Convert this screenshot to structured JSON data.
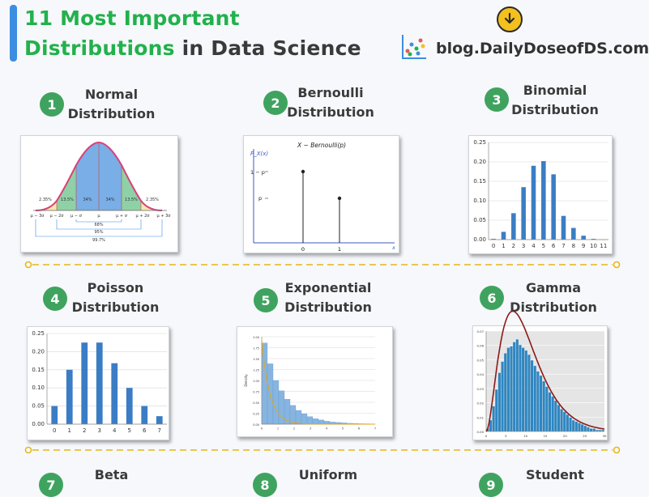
{
  "header": {
    "title_line1_green": "11 Most Important",
    "title_line2_green": "Distributions",
    "title_line2_dark": "in Data Science",
    "brand": "blog.DailyDoseofDS.com"
  },
  "distributions": [
    {
      "num": "1",
      "name_line1": "Normal",
      "name_line2": "Distribution"
    },
    {
      "num": "2",
      "name_line1": "Bernoulli",
      "name_line2": "Distribution"
    },
    {
      "num": "3",
      "name_line1": "Binomial",
      "name_line2": "Distribution"
    },
    {
      "num": "4",
      "name_line1": "Poisson",
      "name_line2": "Distribution"
    },
    {
      "num": "5",
      "name_line1": "Exponential",
      "name_line2": "Distribution"
    },
    {
      "num": "6",
      "name_line1": "Gamma",
      "name_line2": "Distribution"
    },
    {
      "num": "7",
      "name_line1": "Beta",
      "name_line2": ""
    },
    {
      "num": "8",
      "name_line1": "Uniform",
      "name_line2": ""
    },
    {
      "num": "9",
      "name_line1": "Student",
      "name_line2": ""
    }
  ],
  "normal_chart": {
    "percents": [
      "2.35%",
      "13.5%",
      "34%",
      "34%",
      "13.5%",
      "2.35%"
    ],
    "ticks": [
      "μ − 3σ",
      "μ − 2σ",
      "μ − σ",
      "μ",
      "μ + σ",
      "μ + 2σ",
      "μ + 3σ"
    ],
    "ranges": [
      "68%",
      "95%",
      "99.7%"
    ]
  },
  "bernoulli_chart": {
    "title": "X ~ Bernoulli(p)",
    "ylabel": "P_X(x)",
    "ytick_high": "1 − p",
    "ytick_low": "p",
    "xticks": [
      "0",
      "1"
    ],
    "xlabel": "x",
    "values": [
      {
        "x": 0,
        "label": "1 − p"
      },
      {
        "x": 1,
        "label": "p"
      }
    ]
  },
  "chart_data": [
    {
      "type": "bar",
      "name": "binomial",
      "categories": [
        "0",
        "1",
        "2",
        "3",
        "4",
        "5",
        "6",
        "7",
        "8",
        "9",
        "10",
        "11"
      ],
      "values": [
        0.002,
        0.02,
        0.068,
        0.135,
        0.19,
        0.202,
        0.168,
        0.061,
        0.03,
        0.01,
        0.002,
        0.0
      ],
      "yticks": [
        "0.00",
        "0.05",
        "0.10",
        "0.15",
        "0.20",
        "0.25"
      ],
      "ylim": [
        0,
        0.25
      ]
    },
    {
      "type": "bar",
      "name": "poisson",
      "categories": [
        "0",
        "1",
        "2",
        "3",
        "4",
        "5",
        "6",
        "7"
      ],
      "values": [
        0.05,
        0.15,
        0.225,
        0.225,
        0.168,
        0.1,
        0.05,
        0.022
      ],
      "yticks": [
        "0.00",
        "0.05",
        "0.10",
        "0.15",
        "0.20",
        "0.25"
      ],
      "ylim": [
        0,
        0.25
      ]
    },
    {
      "type": "bar",
      "name": "exponential",
      "ylabel": "Density",
      "xticks": [
        "0",
        "1",
        "2",
        "3",
        "4",
        "5",
        "6",
        "7"
      ],
      "yticks": [
        "0.00",
        "0.25",
        "0.50",
        "0.75",
        "1.00",
        "1.25",
        "1.50",
        "1.75",
        "2.00"
      ],
      "values": [
        1.95,
        1.45,
        1.05,
        0.8,
        0.6,
        0.45,
        0.33,
        0.25,
        0.18,
        0.13,
        0.1,
        0.07,
        0.05,
        0.04,
        0.03,
        0.02,
        0.015,
        0.01,
        0.008,
        0.005
      ],
      "ylim": [
        0,
        2.1
      ]
    },
    {
      "type": "bar",
      "name": "gamma",
      "xticks": [
        "0",
        "5",
        "10",
        "15",
        "20",
        "25",
        "30"
      ],
      "yticks": [
        "0.00",
        "0.01",
        "0.02",
        "0.03",
        "0.04",
        "0.05",
        "0.06",
        "0.07"
      ],
      "values": [
        0.002,
        0.008,
        0.018,
        0.03,
        0.042,
        0.05,
        0.056,
        0.06,
        0.061,
        0.064,
        0.066,
        0.062,
        0.06,
        0.058,
        0.055,
        0.051,
        0.047,
        0.043,
        0.04,
        0.036,
        0.032,
        0.028,
        0.025,
        0.022,
        0.019,
        0.016,
        0.014,
        0.012,
        0.01,
        0.008,
        0.007,
        0.006,
        0.005,
        0.004,
        0.003,
        0.002,
        0.002,
        0.001,
        0.001,
        0.001
      ],
      "ylim": [
        0,
        0.072
      ]
    }
  ]
}
